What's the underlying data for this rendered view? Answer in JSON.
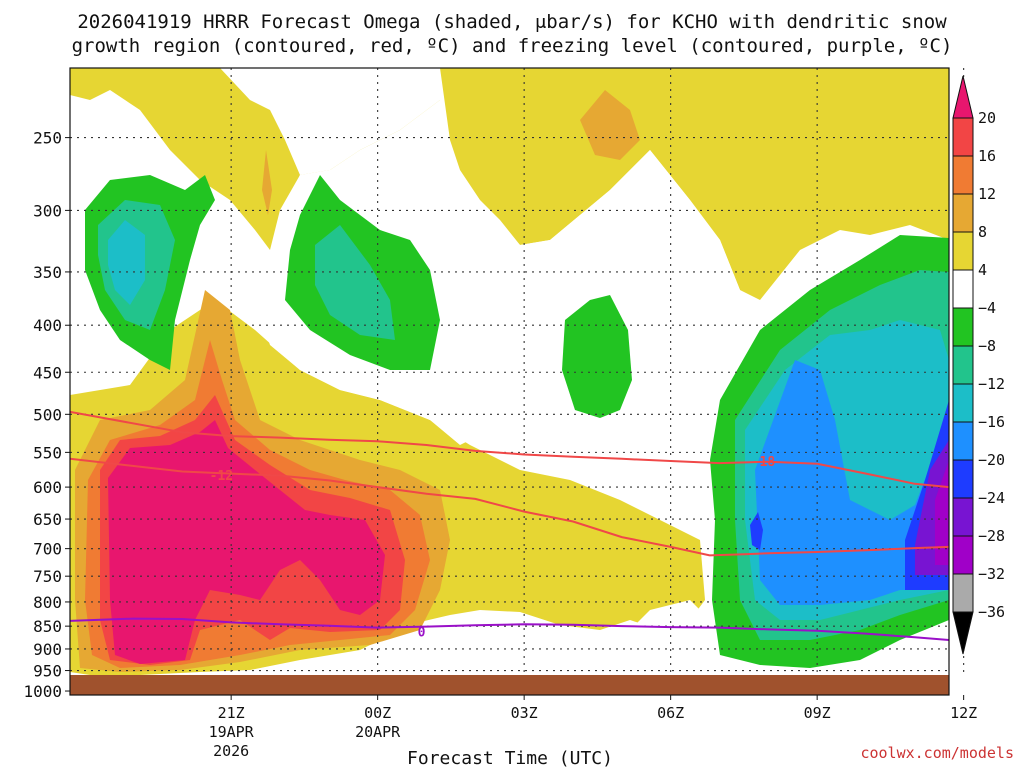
{
  "title_line1": "2026041919 HRRR Forecast Omega (shaded, μbar/s) for KCHO with dendritic snow",
  "title_line2": "growth region (contoured, red, ºC) and freezing level (contoured, purple, ºC)",
  "x_axis_title": "Forecast Time (UTC)",
  "credit": "coolwx.com/models",
  "chart_data": {
    "type": "heatmap",
    "y_axis": {
      "scale": "log-pressure",
      "ticks": [
        250,
        300,
        350,
        400,
        450,
        500,
        550,
        600,
        650,
        700,
        750,
        800,
        850,
        900,
        950,
        1000
      ],
      "labels": [
        "250",
        "300",
        "350",
        "400",
        "450",
        "500",
        "550",
        "600",
        "650",
        "700",
        "750",
        "800",
        "850",
        "900",
        "950",
        "1000"
      ],
      "range": [
        210,
        1010
      ]
    },
    "x_axis": {
      "range_hours": [
        -3.3,
        14.7
      ],
      "ticks": [
        {
          "hour": 0,
          "label": "21Z",
          "sub1": "19APR",
          "sub2": "2026"
        },
        {
          "hour": 3,
          "label": "00Z",
          "sub1": "20APR",
          "sub2": ""
        },
        {
          "hour": 6,
          "label": "03Z",
          "sub1": "",
          "sub2": ""
        },
        {
          "hour": 9,
          "label": "06Z",
          "sub1": "",
          "sub2": ""
        },
        {
          "hour": 12,
          "label": "09Z",
          "sub1": "",
          "sub2": ""
        },
        {
          "hour": 15,
          "label": "12Z",
          "sub1": "",
          "sub2": ""
        }
      ]
    },
    "grid": true,
    "colorbar": {
      "labels": [
        "20",
        "16",
        "12",
        "8",
        "4",
        "−4",
        "−8",
        "−12",
        "−16",
        "−20",
        "−24",
        "−28",
        "−32",
        "−36"
      ],
      "colors": [
        "#e8166e",
        "#f24545",
        "#f07b33",
        "#e6a833",
        "#e6d633",
        "#ffffff",
        "#22c422",
        "#22c48c",
        "#1cbec8",
        "#1e90ff",
        "#1e3cff",
        "#7814d2",
        "#a000c8",
        "#aaaaaa",
        "#000000"
      ]
    },
    "colors": {
      "ground": "#a0522d",
      "dgz_contour": "#f04848",
      "freezing_contour": "#9a10c8"
    },
    "contour_labels": [
      {
        "text": "-18",
        "hour": 10.9,
        "pressure": 562
      },
      {
        "text": "-12",
        "hour": -0.2,
        "pressure": 582
      },
      {
        "text": "0",
        "hour": 3.9,
        "pressure": 862
      }
    ],
    "dgz_top_hpa": [
      [
        -3.3,
        497
      ],
      [
        -1,
        523
      ],
      [
        0,
        528
      ],
      [
        1,
        530
      ],
      [
        2,
        533
      ],
      [
        3,
        535
      ],
      [
        4,
        540
      ],
      [
        5,
        548
      ],
      [
        6,
        553
      ],
      [
        7,
        556
      ],
      [
        8,
        559
      ],
      [
        9,
        562
      ],
      [
        10,
        565
      ],
      [
        11,
        563
      ],
      [
        12,
        566
      ],
      [
        13,
        580
      ],
      [
        14,
        595
      ],
      [
        14.7,
        600
      ]
    ],
    "dgz_bottom_hpa": [
      [
        -3.3,
        559
      ],
      [
        -1,
        577
      ],
      [
        0,
        580
      ],
      [
        1,
        583
      ],
      [
        2,
        590
      ],
      [
        3,
        600
      ],
      [
        4,
        610
      ],
      [
        5,
        618
      ],
      [
        6,
        638
      ],
      [
        7,
        654
      ],
      [
        8,
        680
      ],
      [
        9,
        697
      ],
      [
        9.8,
        712
      ],
      [
        10.5,
        710
      ],
      [
        11,
        708
      ],
      [
        12,
        706
      ],
      [
        13,
        703
      ],
      [
        14,
        699
      ],
      [
        14.7,
        697
      ]
    ],
    "freezing_level_hpa": [
      [
        -3.3,
        839
      ],
      [
        -2,
        834
      ],
      [
        -1,
        835
      ],
      [
        0,
        842
      ],
      [
        1,
        846
      ],
      [
        2,
        849
      ],
      [
        3,
        853
      ],
      [
        4,
        851
      ],
      [
        5,
        848
      ],
      [
        6,
        846
      ],
      [
        7,
        847
      ],
      [
        8,
        850
      ],
      [
        9,
        852
      ],
      [
        10,
        853
      ],
      [
        11,
        857
      ],
      [
        12,
        860
      ],
      [
        13,
        866
      ],
      [
        14,
        874
      ],
      [
        14.7,
        880
      ]
    ]
  }
}
